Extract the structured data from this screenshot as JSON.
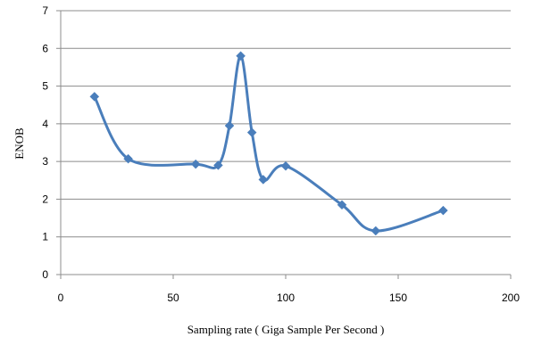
{
  "chart_data": {
    "type": "line",
    "title": "",
    "xlabel": "Sampling rate ( Giga Sample Per Second )",
    "ylabel": "ENOB",
    "xlim": [
      0,
      200
    ],
    "ylim": [
      0,
      7
    ],
    "x_ticks": [
      0,
      50,
      100,
      150,
      200
    ],
    "y_ticks": [
      0,
      1,
      2,
      3,
      4,
      5,
      6,
      7
    ],
    "grid": "horizontal",
    "legend": "none",
    "smooth": true,
    "series": [
      {
        "color": "#4a7ebb",
        "marker": "diamond",
        "points": [
          {
            "x": 15,
            "y": 4.72
          },
          {
            "x": 30,
            "y": 3.07
          },
          {
            "x": 60,
            "y": 2.93
          },
          {
            "x": 70,
            "y": 2.9
          },
          {
            "x": 75,
            "y": 3.95
          },
          {
            "x": 80,
            "y": 5.8
          },
          {
            "x": 85,
            "y": 3.77
          },
          {
            "x": 90,
            "y": 2.52
          },
          {
            "x": 100,
            "y": 2.88
          },
          {
            "x": 125,
            "y": 1.85
          },
          {
            "x": 140,
            "y": 1.16
          },
          {
            "x": 170,
            "y": 1.7
          }
        ]
      }
    ]
  },
  "colors": {
    "gridline": "#8c8c8c",
    "axis": "#8c8c8c",
    "series": "#4a7ebb"
  }
}
